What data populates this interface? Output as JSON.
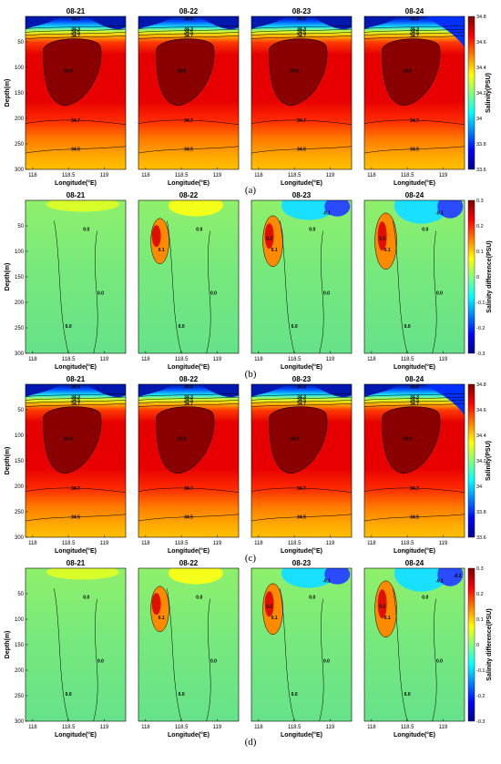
{
  "figure": {
    "colors": {
      "colormap_jet": [
        "#00008f",
        "#0000ff",
        "#00ffff",
        "#ffff00",
        "#ff0000",
        "#800000"
      ],
      "contour_line": "#000000"
    },
    "chart_data": [
      {
        "type": "heatmap",
        "panel_label": "(a)",
        "kind": "salinity",
        "subplots": [
          "08-21",
          "08-22",
          "08-23",
          "08-24"
        ],
        "xlabel": "Longitude(°E)",
        "ylabel": "Depth(m)",
        "xticks": [
          "118",
          "118.5",
          "119"
        ],
        "yticks": [
          "50",
          "100",
          "150",
          "200",
          "250",
          "300"
        ],
        "xlim": [
          117.9,
          119.3
        ],
        "ylim": [
          300,
          0
        ],
        "colorbar": {
          "label": "Salinity(PSU)",
          "ticks": [
            "34.8",
            "34.6",
            "34.4",
            "34.2",
            "34",
            "33.8",
            "33.6"
          ],
          "range": [
            33.6,
            34.8
          ]
        },
        "contour_labels": [
          "34.0",
          "34.3",
          "34.5",
          "34.7",
          "34.9",
          "34.7",
          "34.5"
        ],
        "core_value": "34.9"
      },
      {
        "type": "heatmap",
        "panel_label": "(b)",
        "kind": "difference",
        "subplots": [
          "08-21",
          "08-22",
          "08-23",
          "08-24"
        ],
        "xlabel": "Longitude(°E)",
        "ylabel": "Depth(m)",
        "xticks": [
          "118",
          "118.5",
          "119"
        ],
        "yticks": [
          "50",
          "100",
          "150",
          "200",
          "250",
          "300"
        ],
        "xlim": [
          117.9,
          119.3
        ],
        "ylim": [
          300,
          0
        ],
        "colorbar": {
          "label": "Salinity difference(PSU)",
          "ticks": [
            "0.3",
            "0.2",
            "0.1",
            "0",
            "-0.1",
            "-0.2",
            "-0.3"
          ],
          "range": [
            -0.3,
            0.3
          ]
        },
        "contour_labels": [
          "0.0",
          "0.1",
          "0.2",
          "-0.1"
        ]
      },
      {
        "type": "heatmap",
        "panel_label": "(c)",
        "kind": "salinity",
        "subplots": [
          "08-21",
          "08-22",
          "08-23",
          "08-24"
        ],
        "xlabel": "Longitude(°E)",
        "ylabel": "Depth(m)",
        "xticks": [
          "118",
          "118.5",
          "119"
        ],
        "yticks": [
          "50",
          "100",
          "150",
          "200",
          "250",
          "300"
        ],
        "xlim": [
          117.9,
          119.3
        ],
        "ylim": [
          300,
          0
        ],
        "colorbar": {
          "label": "Salinity(PSU)",
          "ticks": [
            "34.8",
            "34.6",
            "34.4",
            "34.2",
            "34",
            "33.8",
            "33.6"
          ],
          "range": [
            33.6,
            34.8
          ]
        },
        "contour_labels": [
          "34.0",
          "34.3",
          "34.5",
          "34.7",
          "34.9",
          "34.7",
          "34.5"
        ],
        "core_value": "34.9"
      },
      {
        "type": "heatmap",
        "panel_label": "(d)",
        "kind": "difference",
        "subplots": [
          "08-21",
          "08-22",
          "08-23",
          "08-24"
        ],
        "xlabel": "Longitude(°E)",
        "ylabel": "Depth(m)",
        "xticks": [
          "118",
          "118.5",
          "119"
        ],
        "yticks": [
          "50",
          "100",
          "150",
          "200",
          "250",
          "300"
        ],
        "xlim": [
          117.9,
          119.3
        ],
        "ylim": [
          300,
          0
        ],
        "colorbar": {
          "label": "Salinity difference(PSU)",
          "ticks": [
            "0.3",
            "0.2",
            "0.1",
            "0",
            "-0.1",
            "-0.2",
            "-0.3"
          ],
          "range": [
            -0.3,
            0.3
          ]
        },
        "contour_labels": [
          "0.0",
          "0.1",
          "0.2",
          "-0.1",
          "-0.2"
        ]
      }
    ]
  }
}
